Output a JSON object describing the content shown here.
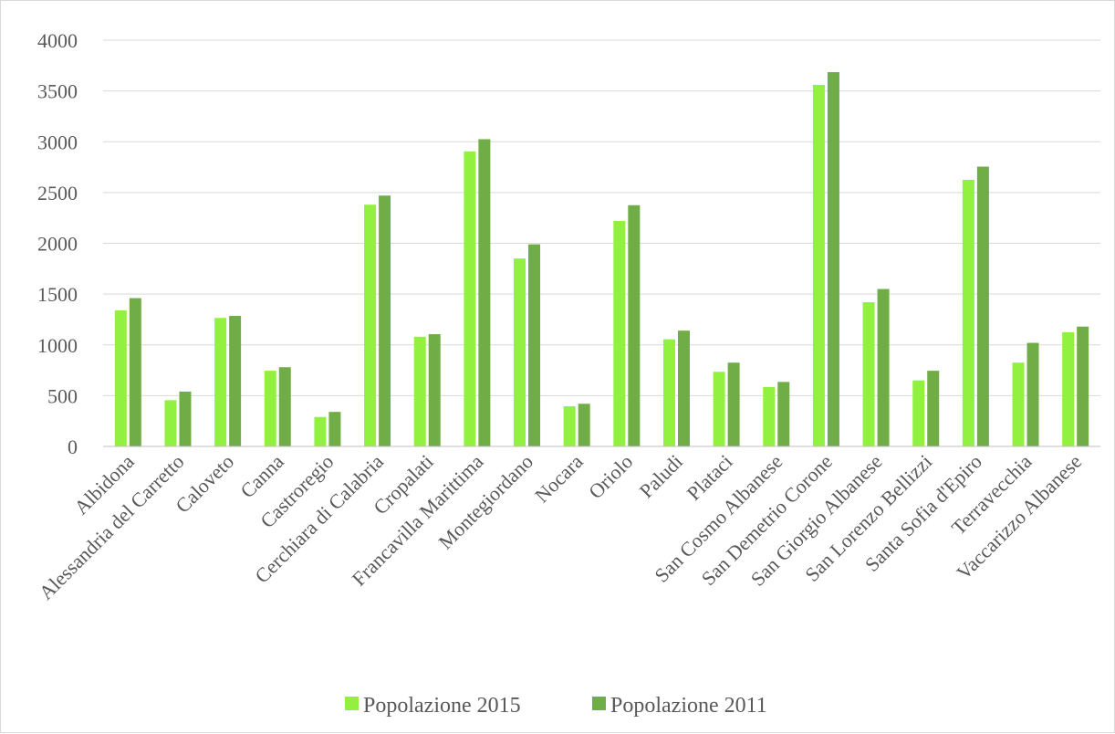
{
  "chart_data": {
    "type": "bar",
    "title": "",
    "xlabel": "",
    "ylabel": "",
    "ylim": [
      0,
      4000
    ],
    "yticks": [
      0,
      500,
      1000,
      1500,
      2000,
      2500,
      3000,
      3500,
      4000
    ],
    "grid": true,
    "legend_position": "bottom",
    "categories": [
      "Albidona",
      "Alessandria del Carretto",
      "Caloveto",
      "Canna",
      "Castroregio",
      "Cerchiara di Calabria",
      "Cropalati",
      "Francavilla Marittima",
      "Montegiordano",
      "Nocara",
      "Oriolo",
      "Paludi",
      "Plataci",
      "San Cosmo Albanese",
      "San Demetrio Corone",
      "San Giorgio Albanese",
      "San Lorenzo Bellizzi",
      "Santa Sofia d'Epiro",
      "Terravecchia",
      "Vaccarizzo Albanese"
    ],
    "series": [
      {
        "name": "Popolazione 2015",
        "color": "#92f040",
        "values": [
          1340,
          455,
          1265,
          745,
          290,
          2380,
          1080,
          2905,
          1850,
          395,
          2220,
          1055,
          735,
          585,
          3560,
          1420,
          650,
          2625,
          825,
          1125
        ]
      },
      {
        "name": "Popolazione 2011",
        "color": "#70ad47",
        "values": [
          1460,
          540,
          1285,
          780,
          340,
          2470,
          1105,
          3025,
          1990,
          420,
          2375,
          1140,
          825,
          635,
          3685,
          1550,
          745,
          2755,
          1020,
          1180
        ]
      }
    ]
  }
}
